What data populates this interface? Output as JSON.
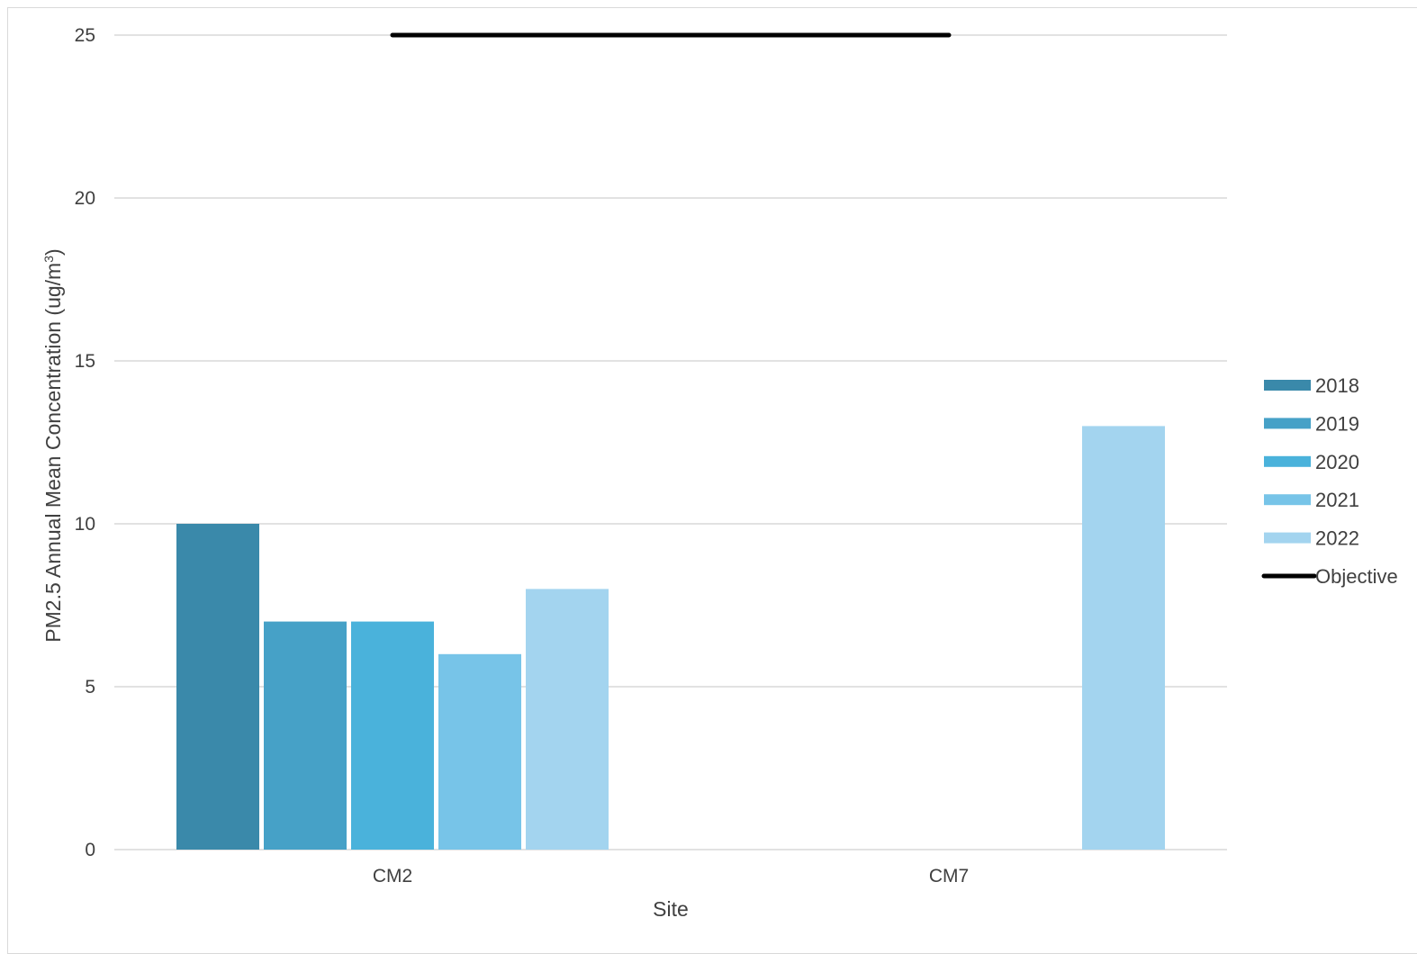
{
  "chart_data": {
    "type": "bar",
    "categories": [
      "CM2",
      "CM7"
    ],
    "series": [
      {
        "name": "2018",
        "values": [
          10,
          null
        ],
        "color": "#3a89aa"
      },
      {
        "name": "2019",
        "values": [
          7,
          null
        ],
        "color": "#46a1c7"
      },
      {
        "name": "2020",
        "values": [
          7,
          null
        ],
        "color": "#4ab2db"
      },
      {
        "name": "2021",
        "values": [
          6,
          null
        ],
        "color": "#77c4e8"
      },
      {
        "name": "2022",
        "values": [
          8,
          13
        ],
        "color": "#a3d4ef"
      }
    ],
    "objective": {
      "name": "Objective",
      "value": 25,
      "color": "#000000"
    },
    "xlabel": "Site",
    "ylabel": "PM2.5 Annual Mean Concentration (ug/m",
    "ylabel_superscript": "3",
    "ylabel_close": ")",
    "ylim": [
      0,
      25
    ],
    "yticks": [
      0,
      5,
      10,
      15,
      20,
      25
    ],
    "grid": true,
    "legend_position": "right"
  }
}
